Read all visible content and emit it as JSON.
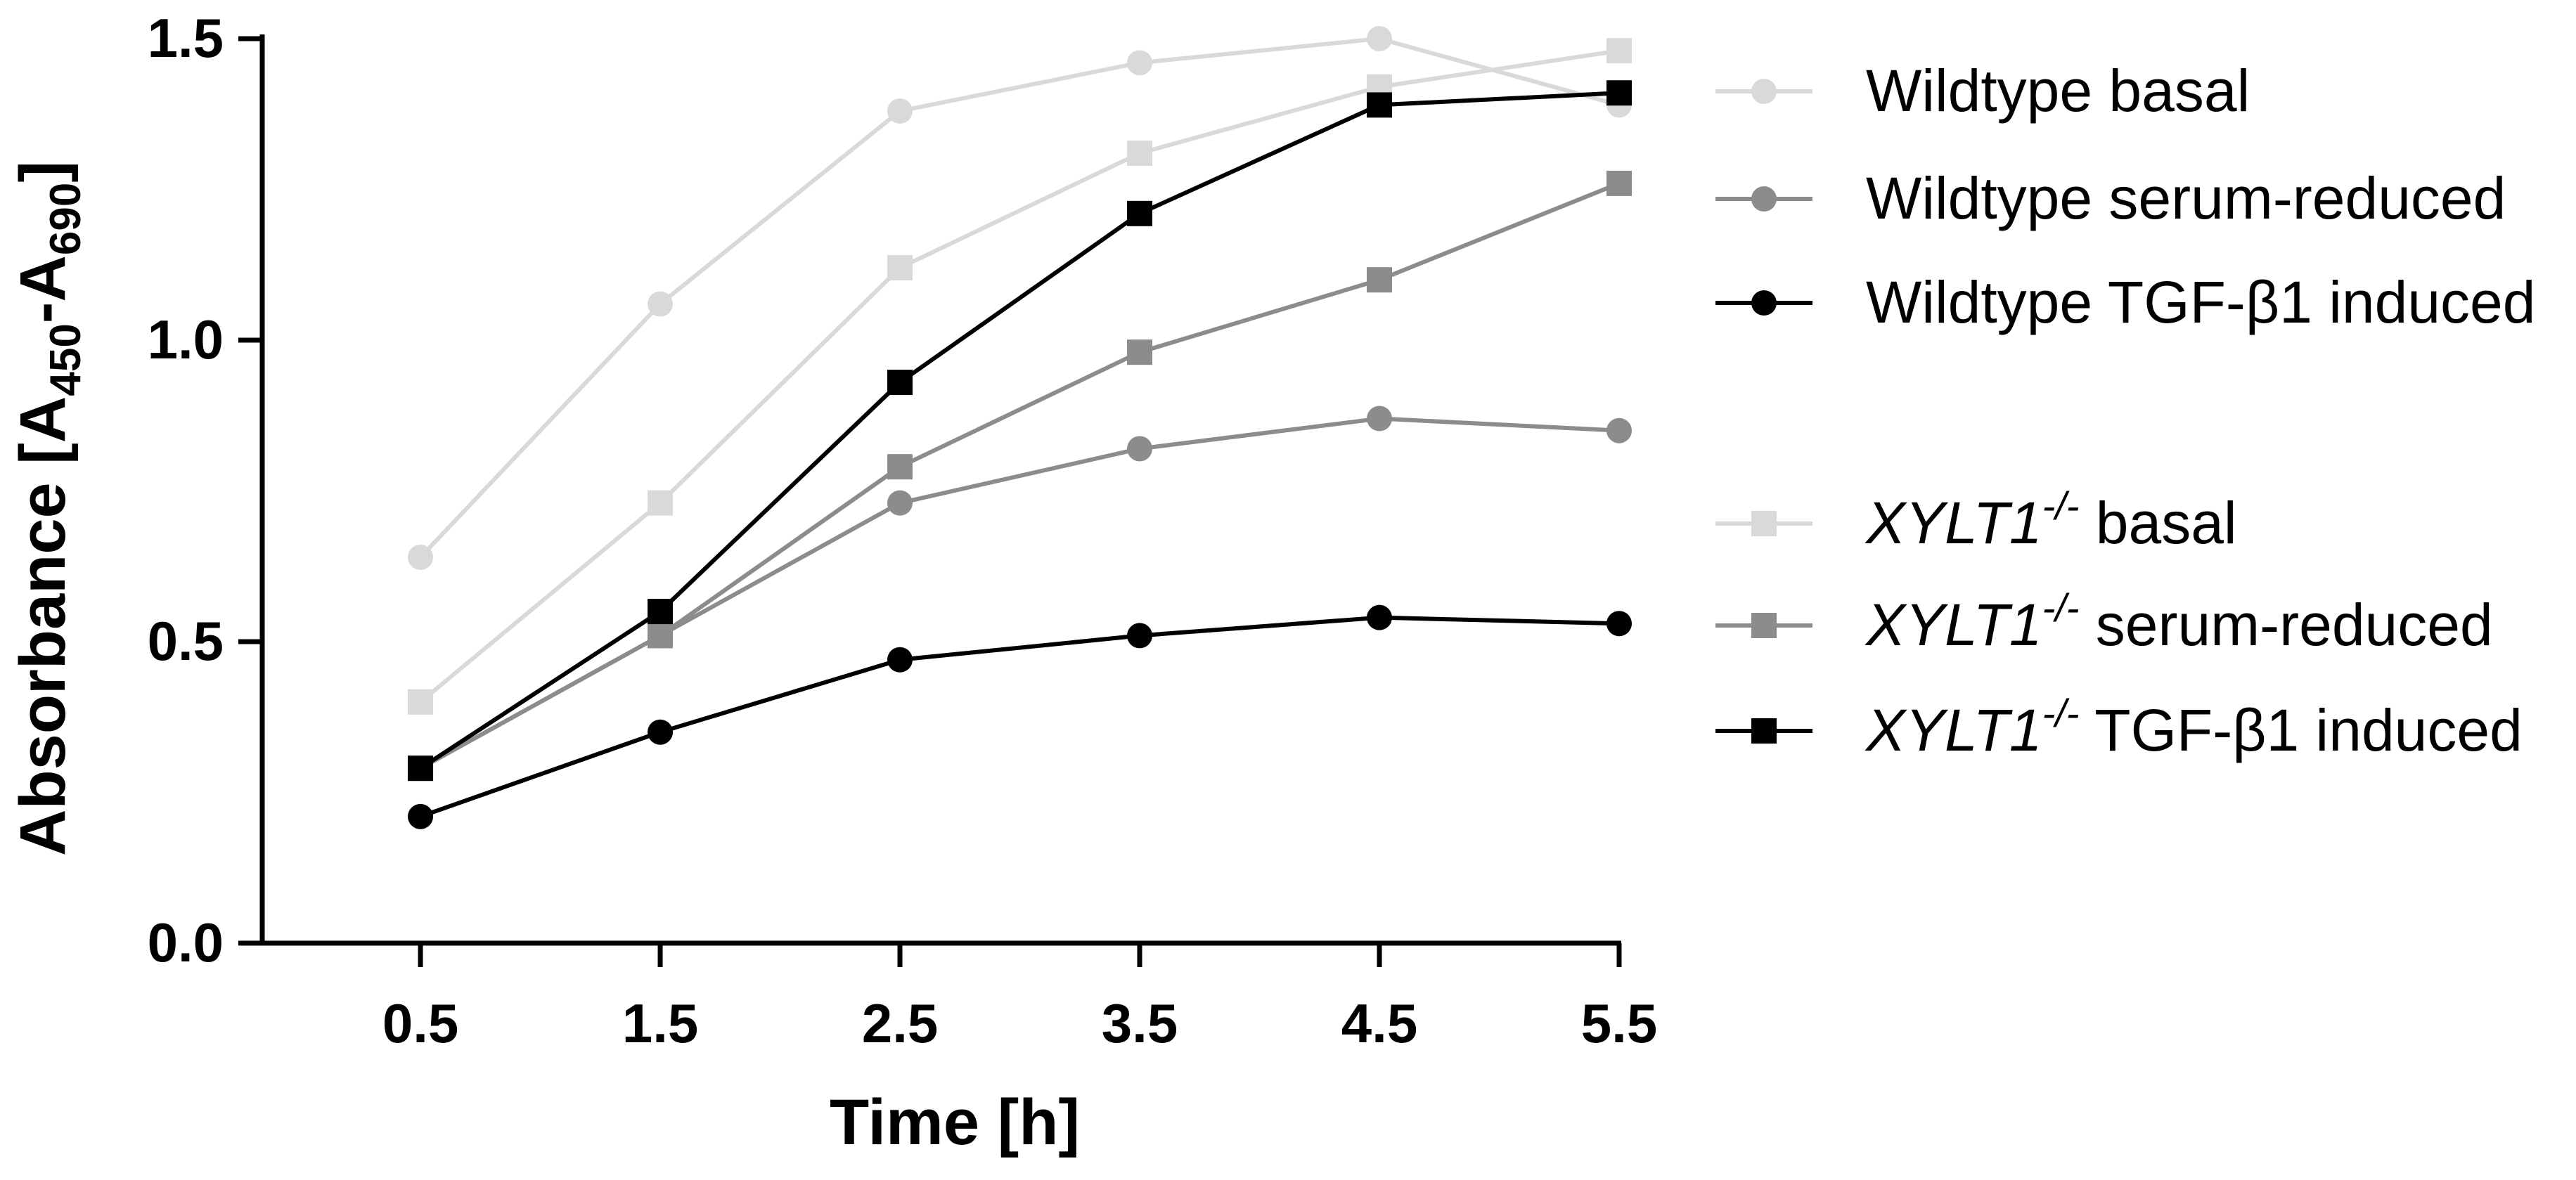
{
  "chart_data": {
    "type": "line",
    "title": "",
    "xlabel": "Time [h]",
    "ylabel": {
      "prefix": "Absorbance [A",
      "sub1": "450",
      "dash": "-A",
      "sub2": "690",
      "suffix": "]"
    },
    "x": [
      0.5,
      1.5,
      2.5,
      3.5,
      4.5,
      5.5
    ],
    "x_tick_labels": [
      "0.5",
      "1.5",
      "2.5",
      "3.5",
      "4.5",
      "5.5"
    ],
    "xlim": [
      -0.16,
      5.5
    ],
    "ylim": [
      0.0,
      1.5
    ],
    "y_ticks": [
      0.0,
      0.5,
      1.0,
      1.5
    ],
    "y_tick_labels": [
      "0.0",
      "0.5",
      "1.0",
      "1.5"
    ],
    "legend_position": "right",
    "series": [
      {
        "name": "Wildtype basal",
        "gene": "",
        "sup": "",
        "suffix": "Wildtype basal",
        "marker": "circle",
        "color": "#d9d9d9",
        "values": [
          0.64,
          1.06,
          1.38,
          1.46,
          1.5,
          1.39
        ]
      },
      {
        "name": "Wildtype serum-reduced",
        "gene": "",
        "sup": "",
        "suffix": "Wildtype serum-reduced",
        "marker": "circle",
        "color": "#8c8c8c",
        "values": [
          0.29,
          0.51,
          0.73,
          0.82,
          0.87,
          0.85
        ]
      },
      {
        "name": "Wildtype TGF-β1 induced",
        "gene": "",
        "sup": "",
        "suffix": "Wildtype TGF-β1 induced",
        "marker": "circle",
        "color": "#000000",
        "values": [
          0.21,
          0.35,
          0.47,
          0.51,
          0.54,
          0.53
        ]
      },
      {
        "name": "XYLT1-/- basal",
        "gene": "XYLT1",
        "sup": "-/-",
        "suffix": " basal",
        "marker": "square",
        "color": "#d9d9d9",
        "values": [
          0.4,
          0.73,
          1.12,
          1.31,
          1.42,
          1.48
        ]
      },
      {
        "name": "XYLT1-/- serum-reduced",
        "gene": "XYLT1",
        "sup": "-/-",
        "suffix": " serum-reduced",
        "marker": "square",
        "color": "#8c8c8c",
        "values": [
          0.29,
          0.51,
          0.79,
          0.98,
          1.1,
          1.26
        ]
      },
      {
        "name": "XYLT1-/- TGF-β1 induced",
        "gene": "XYLT1",
        "sup": "-/-",
        "suffix": " TGF-β1 induced",
        "marker": "square",
        "color": "#000000",
        "values": [
          0.29,
          0.55,
          0.93,
          1.21,
          1.39,
          1.41
        ]
      }
    ]
  }
}
